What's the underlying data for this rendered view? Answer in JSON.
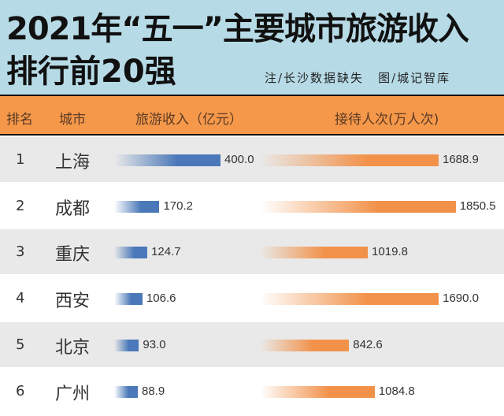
{
  "chart_data": {
    "type": "bar",
    "title": "2021年“五一”主要城市旅游收入排行前20强",
    "note": "注/长沙数据缺失",
    "credit": "图/城记智库",
    "columns": [
      "排名",
      "城市",
      "旅游收入（亿元）",
      "接待人次(万人次)"
    ],
    "rows": [
      {
        "rank": "1",
        "city": "上海",
        "revenue": 400.0,
        "revenue_label": "400.0",
        "visitors": 1688.9,
        "visitors_label": "1688.9"
      },
      {
        "rank": "2",
        "city": "成都",
        "revenue": 170.2,
        "revenue_label": "170.2",
        "visitors": 1850.5,
        "visitors_label": "1850.5"
      },
      {
        "rank": "3",
        "city": "重庆",
        "revenue": 124.7,
        "revenue_label": "124.7",
        "visitors": 1019.8,
        "visitors_label": "1019.8"
      },
      {
        "rank": "4",
        "city": "西安",
        "revenue": 106.6,
        "revenue_label": "106.6",
        "visitors": 1690.0,
        "visitors_label": "1690.0"
      },
      {
        "rank": "5",
        "city": "北京",
        "revenue": 93.0,
        "revenue_label": "93.0",
        "visitors": 842.6,
        "visitors_label": "842.6"
      },
      {
        "rank": "6",
        "city": "广州",
        "revenue": 88.9,
        "revenue_label": "88.9",
        "visitors": 1084.8,
        "visitors_label": "1084.8"
      }
    ],
    "colors": {
      "revenue": "#4a78b8",
      "visitors": "#f2924a",
      "header": "#f5984a",
      "title_bg": "#b7dbe6"
    }
  },
  "title_line1": "2021年“五一”主要城市旅游收入",
  "title_line2": "排行前20强"
}
